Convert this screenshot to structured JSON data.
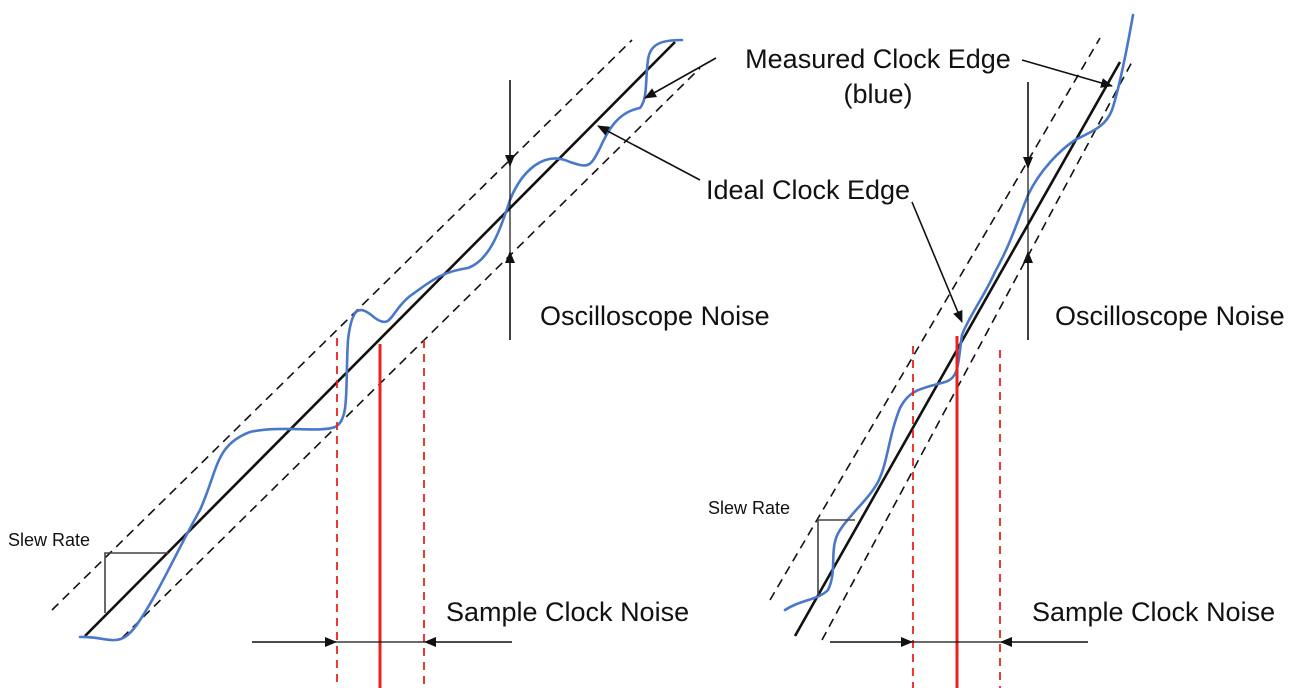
{
  "labels": {
    "measured_clock_edge_line1": "Measured Clock Edge",
    "measured_clock_edge_line2": "(blue)",
    "ideal_clock_edge": "Ideal Clock Edge",
    "oscilloscope_noise_left": "Oscilloscope Noise",
    "oscilloscope_noise_right": "Oscilloscope Noise",
    "slew_rate_left": "Slew Rate",
    "slew_rate_right": "Slew Rate",
    "sample_clock_noise_left": "Sample Clock Noise",
    "sample_clock_noise_right": "Sample Clock Noise"
  },
  "colors": {
    "ideal_edge": "#111111",
    "measured_edge": "#4a78c8",
    "sample_clock": "#e8231e",
    "annotation": "#111111"
  }
}
